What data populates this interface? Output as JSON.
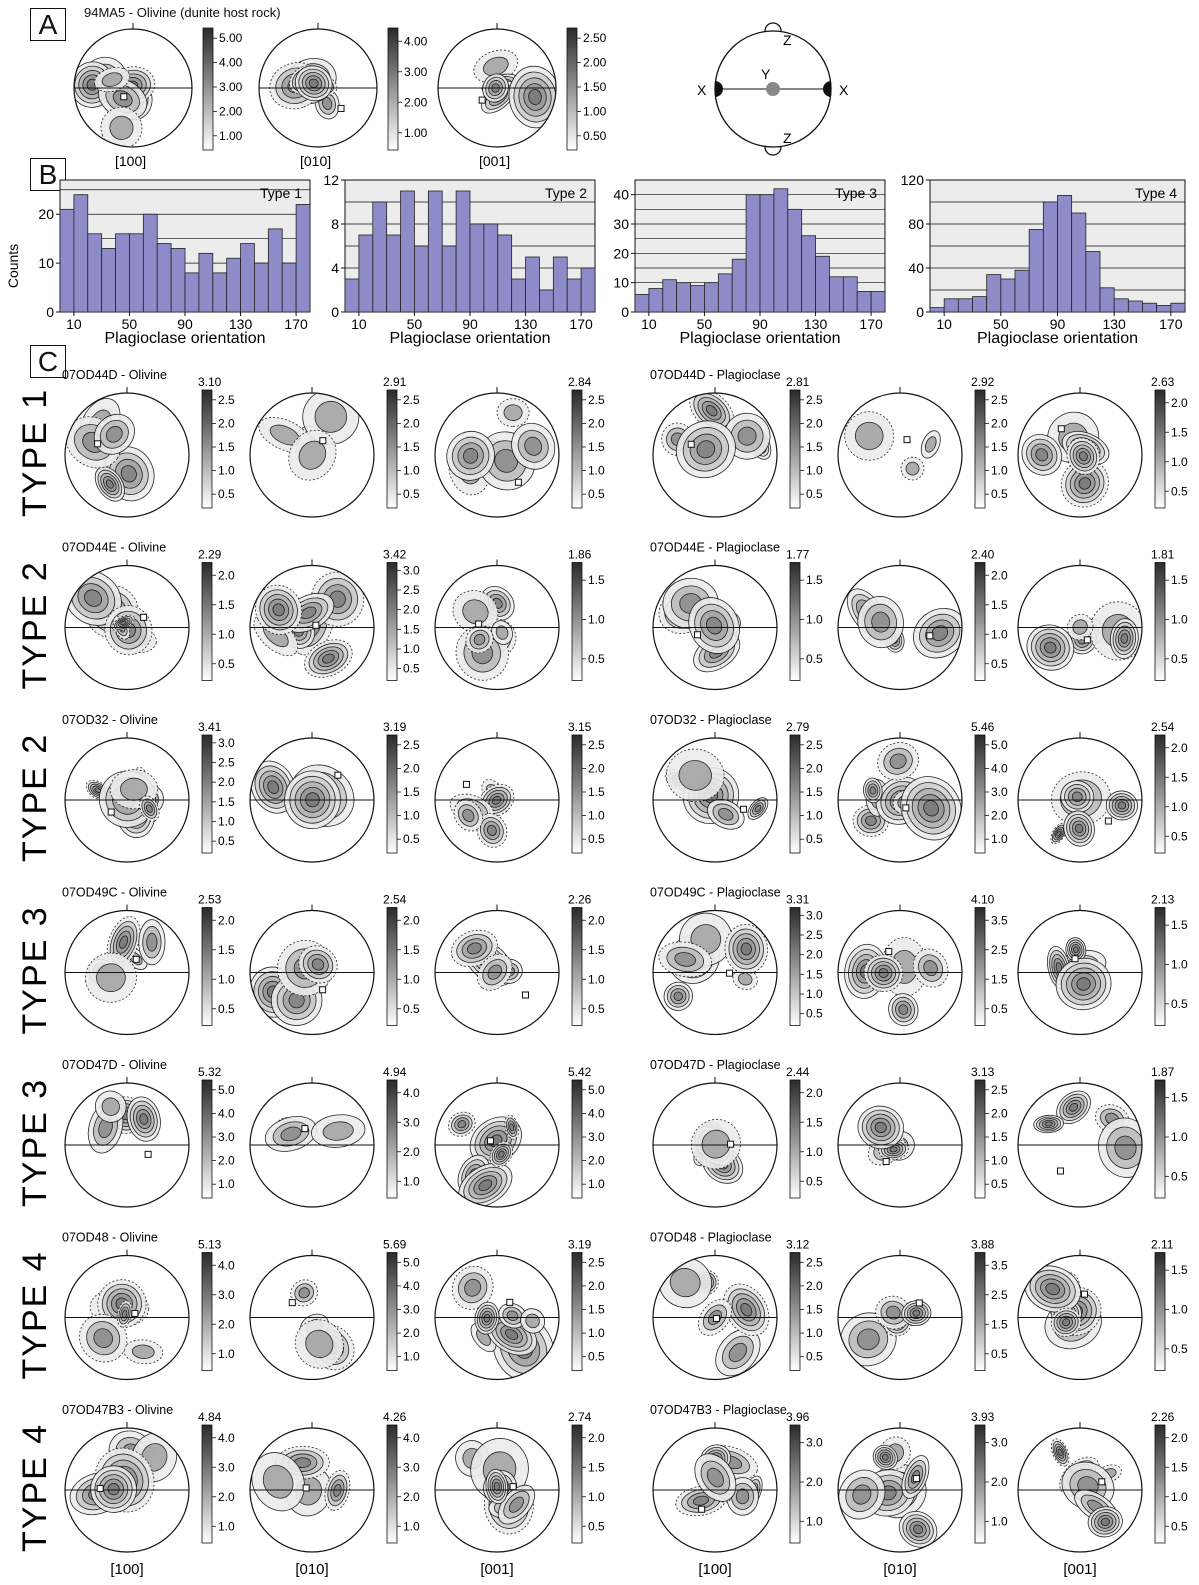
{
  "panel_a": {
    "letter": "A",
    "title": "94MA5 - Olivine (dunite host rock)",
    "nets": [
      {
        "axis": "[100]",
        "scale": [
          "5.00",
          "4.00",
          "3.00",
          "2.00",
          "1.00"
        ]
      },
      {
        "axis": "[010]",
        "scale": [
          "4.00",
          "3.00",
          "2.00",
          "1.00"
        ]
      },
      {
        "axis": "[001]",
        "scale": [
          "2.50",
          "2.00",
          "1.50",
          "1.00",
          "0.50"
        ]
      }
    ],
    "reference": {
      "x": "X",
      "y": "Y",
      "z": "Z"
    }
  },
  "panel_b": {
    "letter": "B"
  },
  "chart_data": [
    {
      "type": "bar",
      "title": "Type 1",
      "xlabel": "Plagioclase orientation",
      "ylabel": "Counts",
      "x": [
        5,
        15,
        25,
        35,
        45,
        55,
        65,
        75,
        85,
        95,
        105,
        115,
        125,
        135,
        145,
        155,
        165,
        175
      ],
      "values": [
        21,
        24,
        16,
        13,
        16,
        16,
        20,
        14,
        13,
        8,
        12,
        8,
        11,
        14,
        10,
        17,
        10,
        22
      ],
      "ylim": [
        0,
        27
      ],
      "yticks": [
        0,
        10,
        20
      ],
      "xticks": [
        10,
        50,
        90,
        130,
        170
      ]
    },
    {
      "type": "bar",
      "title": "Type 2",
      "xlabel": "Plagioclase orientation",
      "ylabel": "",
      "x": [
        5,
        15,
        25,
        35,
        45,
        55,
        65,
        75,
        85,
        95,
        105,
        115,
        125,
        135,
        145,
        155,
        165,
        175
      ],
      "values": [
        3,
        7,
        10,
        7,
        11,
        6,
        11,
        6,
        11,
        8,
        8,
        7,
        3,
        5,
        2,
        5,
        3,
        4
      ],
      "ylim": [
        0,
        12
      ],
      "yticks": [
        0,
        4,
        8,
        12
      ],
      "xticks": [
        10,
        50,
        90,
        130,
        170
      ]
    },
    {
      "type": "bar",
      "title": "Type 3",
      "xlabel": "Plagioclase orientation",
      "ylabel": "",
      "x": [
        5,
        15,
        25,
        35,
        45,
        55,
        65,
        75,
        85,
        95,
        105,
        115,
        125,
        135,
        145,
        155,
        165,
        175
      ],
      "values": [
        6,
        8,
        11,
        10,
        9,
        10,
        13,
        18,
        40,
        40,
        42,
        35,
        26,
        19,
        12,
        12,
        7,
        7
      ],
      "ylim": [
        0,
        45
      ],
      "yticks": [
        0,
        10,
        20,
        30,
        40
      ],
      "xticks": [
        10,
        50,
        90,
        130,
        170
      ]
    },
    {
      "type": "bar",
      "title": "Type 4",
      "xlabel": "Plagioclase orientation",
      "ylabel": "",
      "x": [
        5,
        15,
        25,
        35,
        45,
        55,
        65,
        75,
        85,
        95,
        105,
        115,
        125,
        135,
        145,
        155,
        165,
        175
      ],
      "values": [
        4,
        12,
        12,
        14,
        34,
        30,
        38,
        75,
        100,
        106,
        90,
        55,
        22,
        12,
        10,
        8,
        6,
        8
      ],
      "ylim": [
        0,
        120
      ],
      "yticks": [
        0,
        40,
        80,
        120
      ],
      "xticks": [
        10,
        50,
        90,
        130,
        170
      ]
    }
  ],
  "panel_c": {
    "letter": "C",
    "axes": [
      "[100]",
      "[010]",
      "[001]"
    ],
    "rows": [
      {
        "type": "TYPE 1",
        "olivine_title": "07OD44D - Olivine",
        "plag_title": "07OD44D - Plagioclase",
        "olivine": [
          {
            "max": "3.10",
            "ticks": [
              "2.5",
              "2.0",
              "1.5",
              "1.0",
              "0.5"
            ]
          },
          {
            "max": "2.91",
            "ticks": [
              "2.5",
              "2.0",
              "1.5",
              "1.0",
              "0.5"
            ]
          },
          {
            "max": "2.84",
            "ticks": [
              "2.5",
              "2.0",
              "1.5",
              "1.0",
              "0.5"
            ]
          }
        ],
        "plag": [
          {
            "max": "2.81",
            "ticks": [
              "2.5",
              "2.0",
              "1.5",
              "1.0",
              "0.5"
            ]
          },
          {
            "max": "2.92",
            "ticks": [
              "2.5",
              "2.0",
              "1.5",
              "1.0",
              "0.5"
            ]
          },
          {
            "max": "2.63",
            "ticks": [
              "2.0",
              "1.5",
              "1.0",
              "0.5"
            ]
          }
        ]
      },
      {
        "type": "TYPE 2",
        "olivine_title": "07OD44E - Olivine",
        "plag_title": "07OD44E - Plagioclase",
        "olivine": [
          {
            "max": "2.29",
            "ticks": [
              "2.0",
              "1.5",
              "1.0",
              "0.5"
            ]
          },
          {
            "max": "3.42",
            "ticks": [
              "3.0",
              "2.5",
              "2.0",
              "1.5",
              "1.0",
              "0.5"
            ]
          },
          {
            "max": "1.86",
            "ticks": [
              "1.5",
              "1.0",
              "0.5"
            ]
          }
        ],
        "plag": [
          {
            "max": "1.77",
            "ticks": [
              "1.5",
              "1.0",
              "0.5"
            ]
          },
          {
            "max": "2.40",
            "ticks": [
              "2.0",
              "1.5",
              "1.0",
              "0.5"
            ]
          },
          {
            "max": "1.81",
            "ticks": [
              "1.5",
              "1.0",
              "0.5"
            ]
          }
        ]
      },
      {
        "type": "TYPE 2",
        "olivine_title": "07OD32 - Olivine",
        "plag_title": "07OD32 - Plagioclase",
        "olivine": [
          {
            "max": "3.41",
            "ticks": [
              "3.0",
              "2.5",
              "2.0",
              "1.5",
              "1.0",
              "0.5"
            ]
          },
          {
            "max": "3.19",
            "ticks": [
              "2.5",
              "2.0",
              "1.5",
              "1.0",
              "0.5"
            ]
          },
          {
            "max": "3.15",
            "ticks": [
              "2.5",
              "2.0",
              "1.5",
              "1.0",
              "0.5"
            ]
          }
        ],
        "plag": [
          {
            "max": "2.79",
            "ticks": [
              "2.5",
              "2.0",
              "1.5",
              "1.0",
              "0.5"
            ]
          },
          {
            "max": "5.46",
            "ticks": [
              "5.0",
              "4.0",
              "3.0",
              "2.0",
              "1.0"
            ]
          },
          {
            "max": "2.54",
            "ticks": [
              "2.0",
              "1.5",
              "1.0",
              "0.5"
            ]
          }
        ]
      },
      {
        "type": "TYPE 3",
        "olivine_title": "07OD49C - Olivine",
        "plag_title": "07OD49C - Plagioclase",
        "olivine": [
          {
            "max": "2.53",
            "ticks": [
              "2.0",
              "1.5",
              "1.0",
              "0.5"
            ]
          },
          {
            "max": "2.54",
            "ticks": [
              "2.0",
              "1.5",
              "1.0",
              "0.5"
            ]
          },
          {
            "max": "2.26",
            "ticks": [
              "2.0",
              "1.5",
              "1.0",
              "0.5"
            ]
          }
        ],
        "plag": [
          {
            "max": "3.31",
            "ticks": [
              "3.0",
              "2.5",
              "2.0",
              "1.5",
              "1.0",
              "0.5"
            ]
          },
          {
            "max": "4.10",
            "ticks": [
              "3.5",
              "2.5",
              "1.5",
              "0.5"
            ]
          },
          {
            "max": "2.13",
            "ticks": [
              "1.5",
              "1.0",
              "0.5"
            ]
          }
        ]
      },
      {
        "type": "TYPE 3",
        "olivine_title": "07OD47D - Olivine",
        "plag_title": "07OD47D - Plagioclase",
        "olivine": [
          {
            "max": "5.32",
            "ticks": [
              "5.0",
              "4.0",
              "3.0",
              "2.0",
              "1.0"
            ]
          },
          {
            "max": "4.94",
            "ticks": [
              "4.0",
              "3.0",
              "2.0",
              "1.0"
            ]
          },
          {
            "max": "5.42",
            "ticks": [
              "5.0",
              "4.0",
              "3.0",
              "2.0",
              "1.0"
            ]
          }
        ],
        "plag": [
          {
            "max": "2.44",
            "ticks": [
              "2.0",
              "1.5",
              "1.0",
              "0.5"
            ]
          },
          {
            "max": "3.13",
            "ticks": [
              "2.5",
              "2.0",
              "1.5",
              "1.0",
              "0.5"
            ]
          },
          {
            "max": "1.87",
            "ticks": [
              "1.5",
              "1.0",
              "0.5"
            ]
          }
        ]
      },
      {
        "type": "TYPE 4",
        "olivine_title": "07OD48 - Olivine",
        "plag_title": "07OD48 - Plagioclase",
        "olivine": [
          {
            "max": "5.13",
            "ticks": [
              "4.0",
              "3.0",
              "2.0",
              "1.0"
            ]
          },
          {
            "max": "5.69",
            "ticks": [
              "5.0",
              "4.0",
              "3.0",
              "2.0",
              "1.0"
            ]
          },
          {
            "max": "3.19",
            "ticks": [
              "2.5",
              "2.0",
              "1.5",
              "1.0",
              "0.5"
            ]
          }
        ],
        "plag": [
          {
            "max": "3.12",
            "ticks": [
              "2.5",
              "2.0",
              "1.5",
              "1.0",
              "0.5"
            ]
          },
          {
            "max": "3.88",
            "ticks": [
              "3.5",
              "2.5",
              "1.5",
              "0.5"
            ]
          },
          {
            "max": "2.11",
            "ticks": [
              "1.5",
              "1.0",
              "0.5"
            ]
          }
        ]
      },
      {
        "type": "TYPE 4",
        "olivine_title": "07OD47B3 - Olivine",
        "plag_title": "07OD47B3 - Plagioclase",
        "olivine": [
          {
            "max": "4.84",
            "ticks": [
              "4.0",
              "3.0",
              "2.0",
              "1.0"
            ]
          },
          {
            "max": "4.26",
            "ticks": [
              "4.0",
              "3.0",
              "2.0",
              "1.0"
            ]
          },
          {
            "max": "2.74",
            "ticks": [
              "2.0",
              "1.5",
              "1.0",
              "0.5"
            ]
          }
        ],
        "plag": [
          {
            "max": "3.96",
            "ticks": [
              "3.0",
              "2.0",
              "1.0"
            ]
          },
          {
            "max": "3.93",
            "ticks": [
              "3.0",
              "2.0",
              "1.0"
            ]
          },
          {
            "max": "2.26",
            "ticks": [
              "2.0",
              "1.5",
              "1.0",
              "0.5"
            ]
          }
        ]
      }
    ]
  },
  "colors": {
    "bar": "#8e8cc8",
    "bar_stroke": "#222222",
    "panel_bg": "#ececec"
  }
}
